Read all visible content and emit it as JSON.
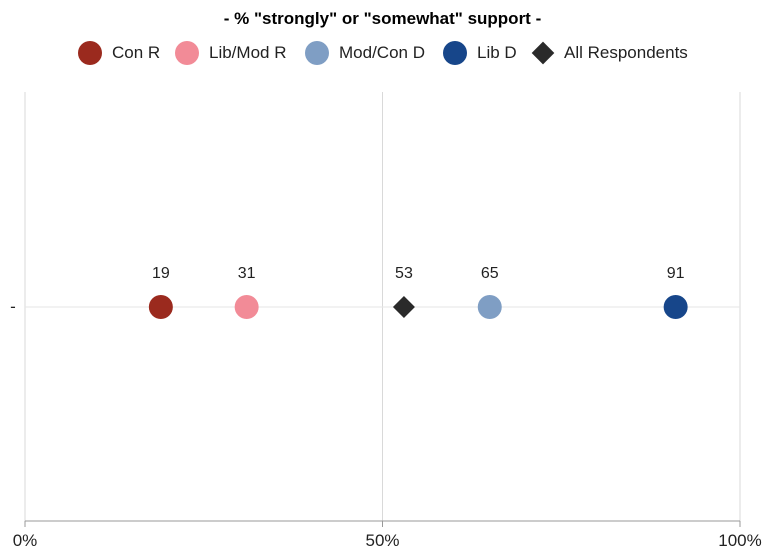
{
  "chart_data": {
    "type": "scatter",
    "title": "",
    "subtitle": "- % \"strongly\" or \"somewhat\" support -",
    "xlabel": "",
    "ylabel": "",
    "xlim": [
      0,
      100
    ],
    "x_ticks": [
      0,
      50,
      100
    ],
    "x_tick_labels": [
      "0%",
      "50%",
      "100%"
    ],
    "y_categories": [
      "-"
    ],
    "grid": true,
    "legend_position": "top",
    "series": [
      {
        "name": "Con R",
        "color": "#9b2a1e",
        "marker": "circle",
        "values": [
          19
        ]
      },
      {
        "name": "Lib/Mod R",
        "color": "#f28b97",
        "marker": "circle",
        "values": [
          31
        ]
      },
      {
        "name": "Mod/Con D",
        "color": "#7f9ec4",
        "marker": "circle",
        "values": [
          65
        ]
      },
      {
        "name": "Lib D",
        "color": "#17468a",
        "marker": "circle",
        "values": [
          91
        ]
      },
      {
        "name": "All Respondents",
        "color": "#2a2a2a",
        "marker": "diamond",
        "values": [
          53
        ]
      }
    ]
  }
}
